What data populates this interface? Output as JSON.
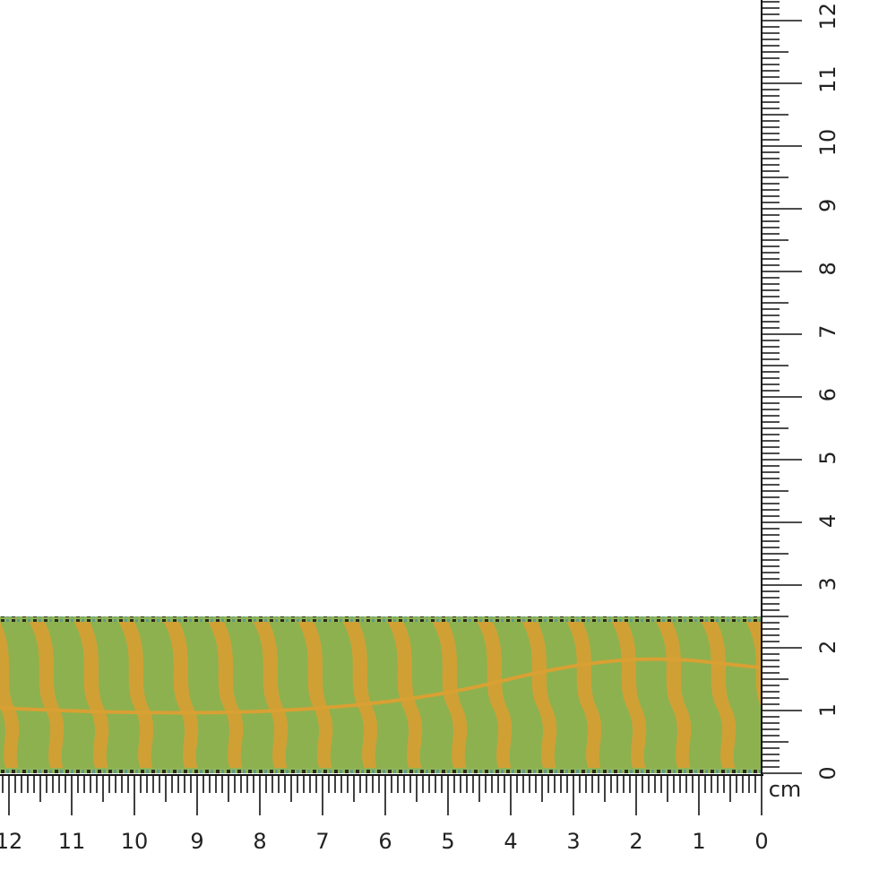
{
  "bottom_ruler": {
    "labels": [
      "0",
      "1",
      "2",
      "3",
      "4",
      "5",
      "6",
      "7",
      "8",
      "9",
      "10",
      "11",
      "12"
    ]
  },
  "right_ruler": {
    "labels": [
      "0",
      "1",
      "2",
      "3",
      "4",
      "5",
      "6",
      "7",
      "8",
      "9",
      "10",
      "11",
      "12"
    ]
  },
  "unit": "cm"
}
